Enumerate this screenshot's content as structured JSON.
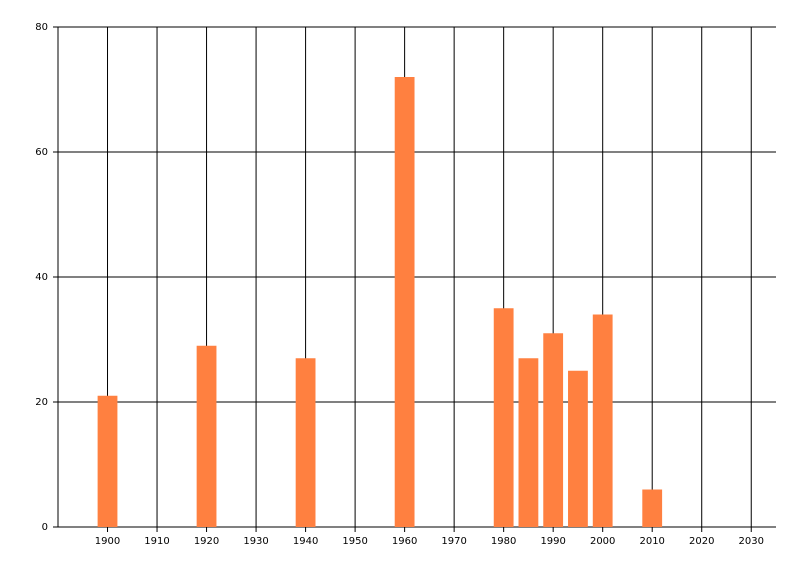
{
  "chart_data": {
    "type": "bar",
    "x": [
      1900,
      1920,
      1940,
      1960,
      1980,
      1985,
      1990,
      1995,
      2000,
      2010
    ],
    "values": [
      21,
      29,
      27,
      72,
      35,
      27,
      31,
      25,
      34,
      6
    ],
    "color": "#ff8040",
    "xlim": [
      1890,
      2035
    ],
    "xticks": [
      1900,
      1910,
      1920,
      1930,
      1940,
      1950,
      1960,
      1970,
      1980,
      1990,
      2000,
      2010,
      2020,
      2030
    ],
    "ylim": [
      0,
      80
    ],
    "yticks": [
      0,
      20,
      40,
      60,
      80
    ],
    "grid": true
  }
}
